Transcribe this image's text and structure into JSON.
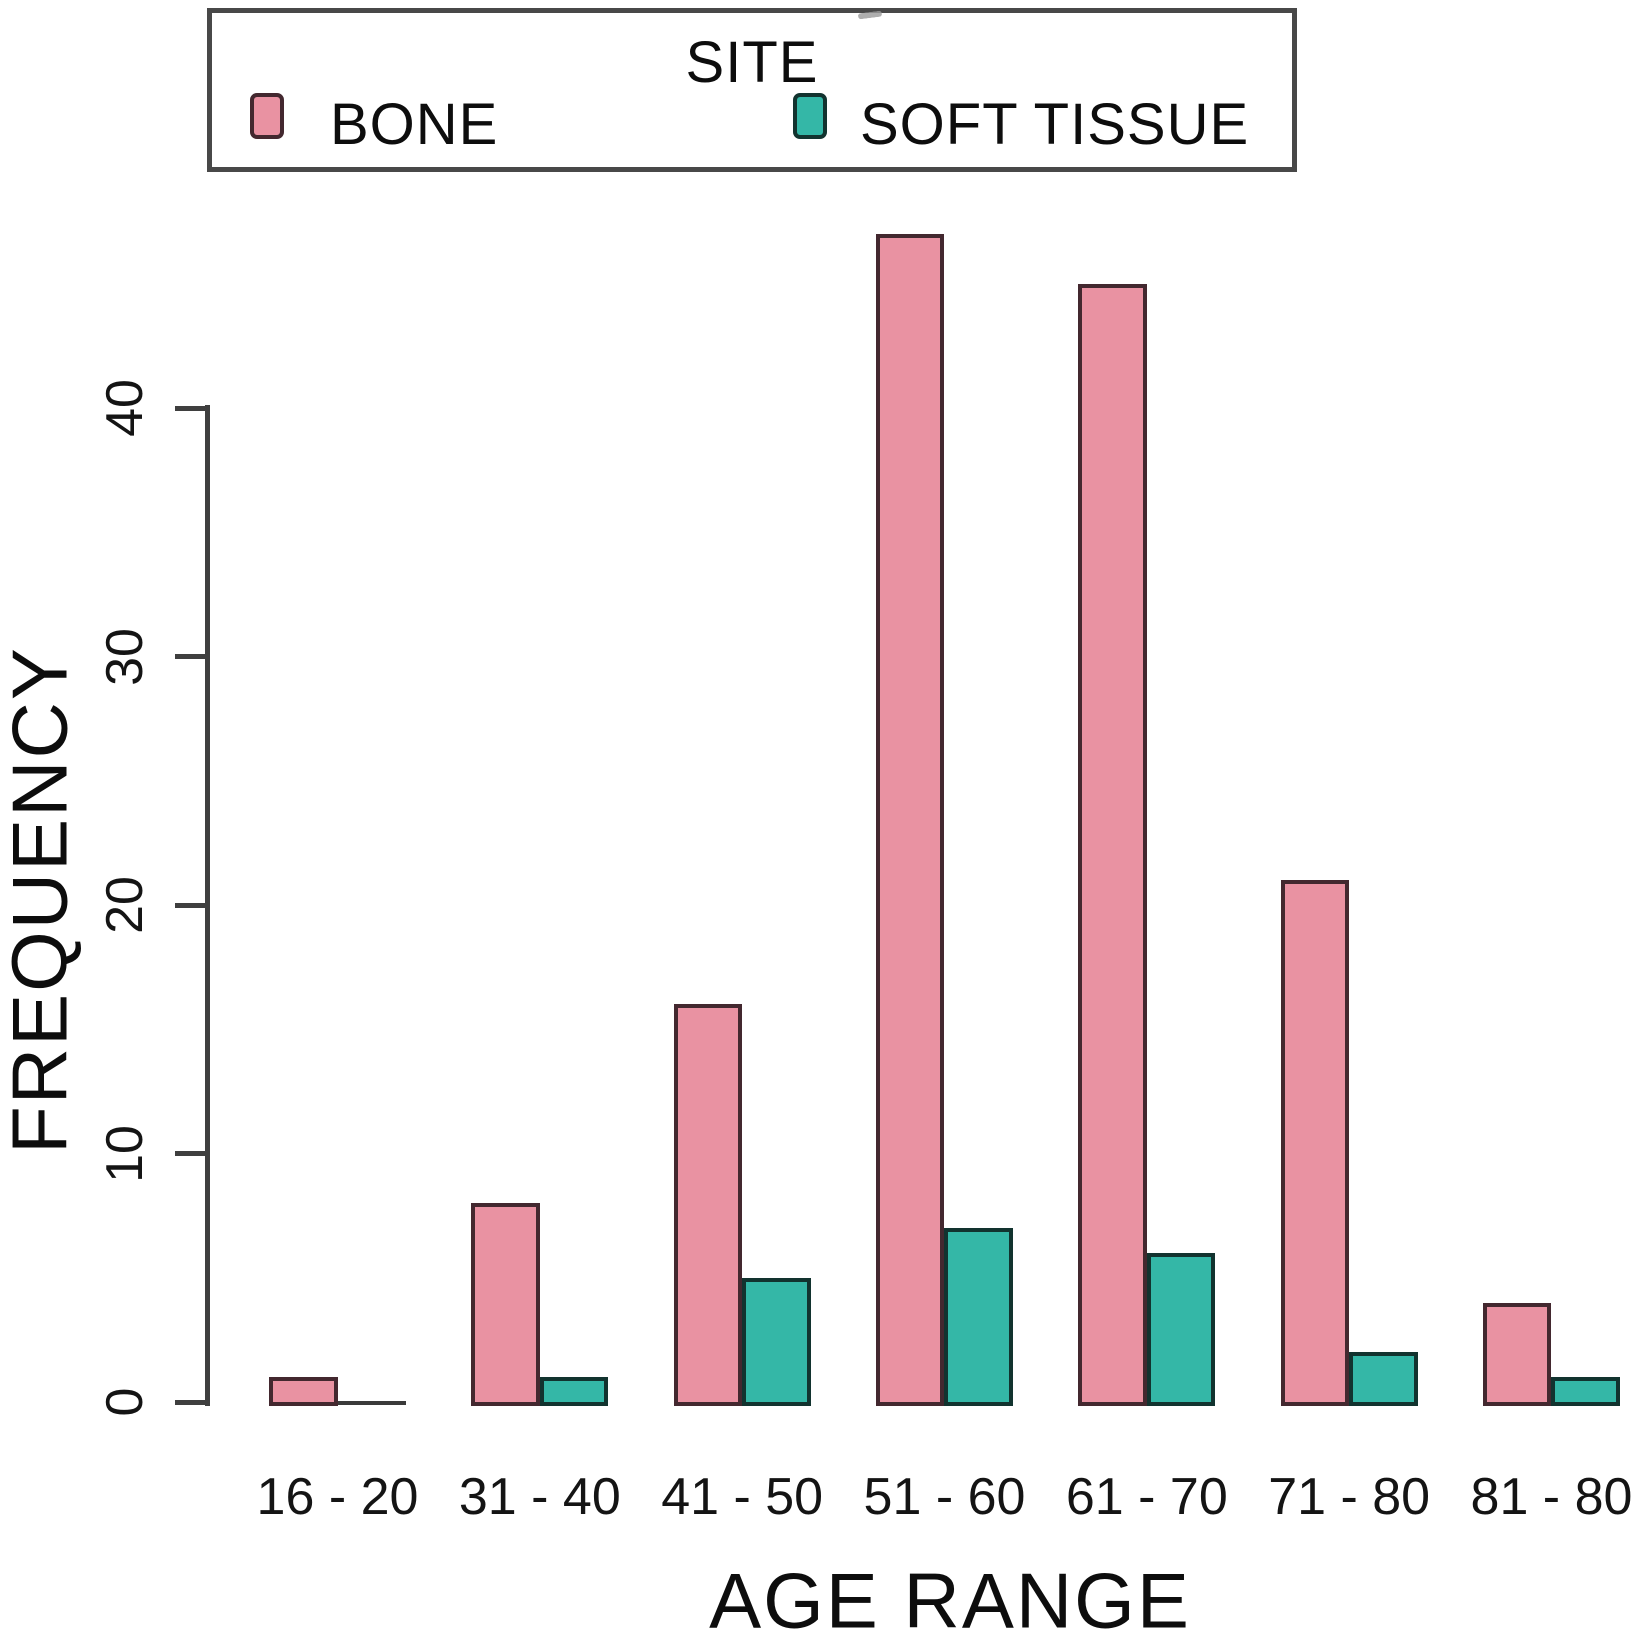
{
  "legend": {
    "title": "SITE",
    "items": [
      {
        "label": "BONE",
        "color": "#e992a2",
        "border": "#43282f"
      },
      {
        "label": "SOFT TISSUE",
        "color": "#34b7a7",
        "border": "#12332f"
      }
    ]
  },
  "y_axis": {
    "label": "FREQUENCY",
    "tick_labels": [
      "0",
      "10",
      "20",
      "30",
      "40"
    ]
  },
  "x_axis": {
    "label": "AGE RANGE"
  },
  "chart_data": {
    "type": "bar",
    "title": "",
    "categories": [
      "16 - 20",
      "31 - 40",
      "41 - 50",
      "51 - 60",
      "61 - 70",
      "71 - 80",
      "81 - 80"
    ],
    "series": [
      {
        "name": "BONE",
        "color": "#e992a2",
        "values": [
          1,
          8,
          16,
          47,
          45,
          21,
          4
        ]
      },
      {
        "name": "SOFT TISSUE",
        "color": "#34b7a7",
        "values": [
          0,
          1,
          5,
          7,
          6,
          2,
          1
        ]
      }
    ],
    "xlabel": "AGE RANGE",
    "ylabel": "FREQUENCY",
    "ylim": [
      0,
      40
    ],
    "yticks": [
      0,
      10,
      20,
      30,
      40
    ],
    "grid": false,
    "legend_position": "top",
    "legend_title": "SITE"
  }
}
